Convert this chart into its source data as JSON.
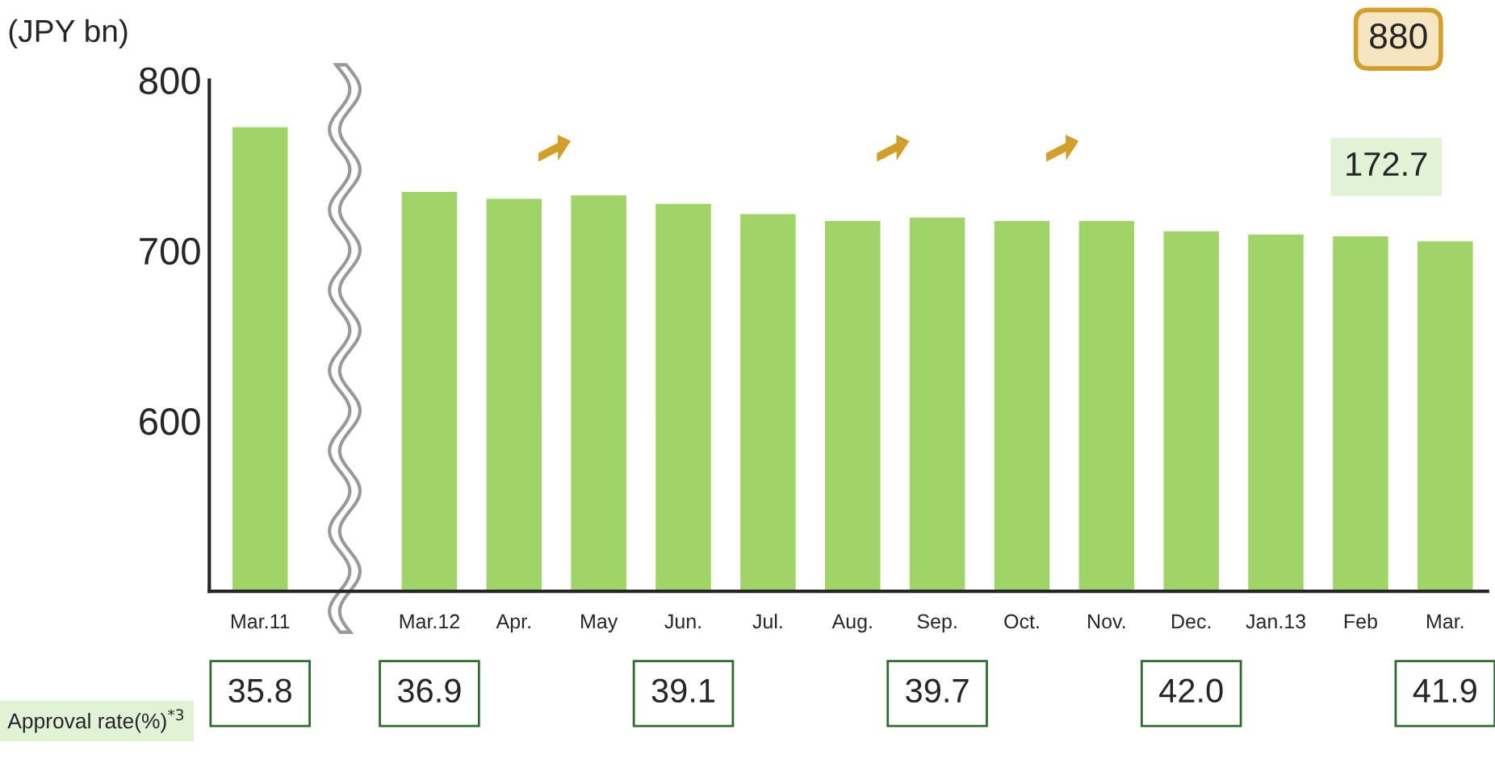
{
  "chart_data": {
    "type": "bar",
    "ylabel": "(JPY bn)",
    "categories": [
      "Mar.11",
      null,
      "Mar.12",
      "Apr.",
      "May",
      "Jun.",
      "Jul.",
      "Aug.",
      "Sep.",
      "Oct.",
      "Nov.",
      "Dec.",
      "Jan.13",
      "Feb",
      "Mar."
    ],
    "values": [
      773,
      null,
      735,
      731,
      733,
      728,
      722,
      718,
      720,
      718,
      718,
      712,
      710,
      709,
      706
    ],
    "color": "#a0d468",
    "ylim": [
      500,
      800
    ],
    "yticks": [
      600,
      700,
      800
    ],
    "grid": false,
    "legend": false,
    "annotations": [
      "880",
      "172.7",
      "Approval rate(%)$^{*3}$",
      "35.8",
      "36.9",
      "39.1",
      "39.7",
      "42.0",
      "41.9"
    ]
  }
}
